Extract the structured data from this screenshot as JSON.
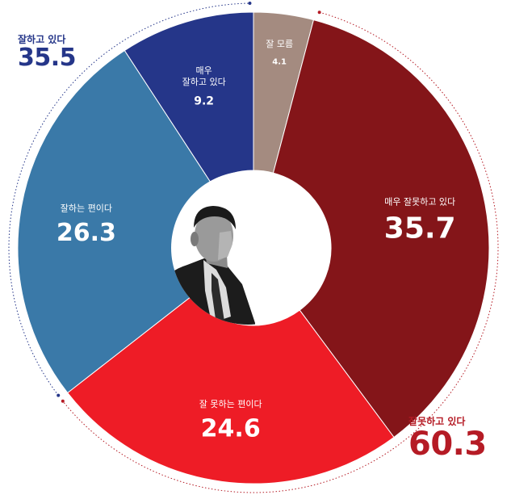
{
  "chart_data": {
    "type": "pie",
    "slices": [
      {
        "label": "잘 모름",
        "value": 4.1,
        "color": "#a48b80"
      },
      {
        "label": "매우 잘못하고 있다",
        "value": 35.7,
        "color": "#841519"
      },
      {
        "label": "잘 못하는 편이다",
        "value": 24.6,
        "color": "#ee1c26"
      },
      {
        "label": "잘하는 편이다",
        "value": 26.3,
        "color": "#3a79a8"
      },
      {
        "label": "매우\n잘하고 있다",
        "value": 9.2,
        "color": "#253689"
      }
    ],
    "groups": [
      {
        "id": "pos",
        "label": "잘하고 있다",
        "value": "35.5",
        "color": "#253689"
      },
      {
        "id": "neg",
        "label": "잘못하고 있다",
        "value": "60.3",
        "color": "#b51b25"
      }
    ]
  }
}
